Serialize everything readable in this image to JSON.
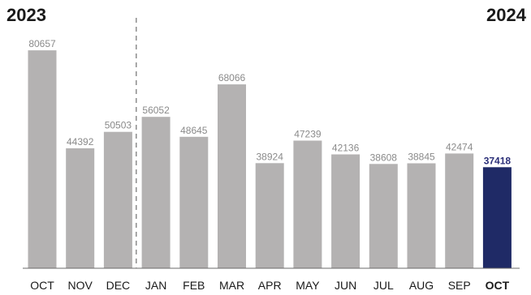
{
  "chart_data": {
    "type": "bar",
    "year_start_label": "2023",
    "year_end_label": "2024",
    "categories": [
      "OCT",
      "NOV",
      "DEC",
      "JAN",
      "FEB",
      "MAR",
      "APR",
      "MAY",
      "JUN",
      "JUL",
      "AUG",
      "SEP",
      "OCT"
    ],
    "values": [
      80657,
      44392,
      50503,
      56052,
      48645,
      68066,
      38924,
      47239,
      42136,
      38608,
      38845,
      42474,
      37418
    ],
    "highlight_index": 12,
    "year_divider_after_index": 2,
    "ylim": [
      0,
      90000
    ],
    "grid": false,
    "colors": {
      "bar": "#b4b2b2",
      "highlight_bar": "#1f2a66",
      "highlight_text": "#2b2f78",
      "value_text": "#8a8a8a",
      "axis": "#6b6b6b",
      "divider": "#8c8c8c"
    }
  }
}
